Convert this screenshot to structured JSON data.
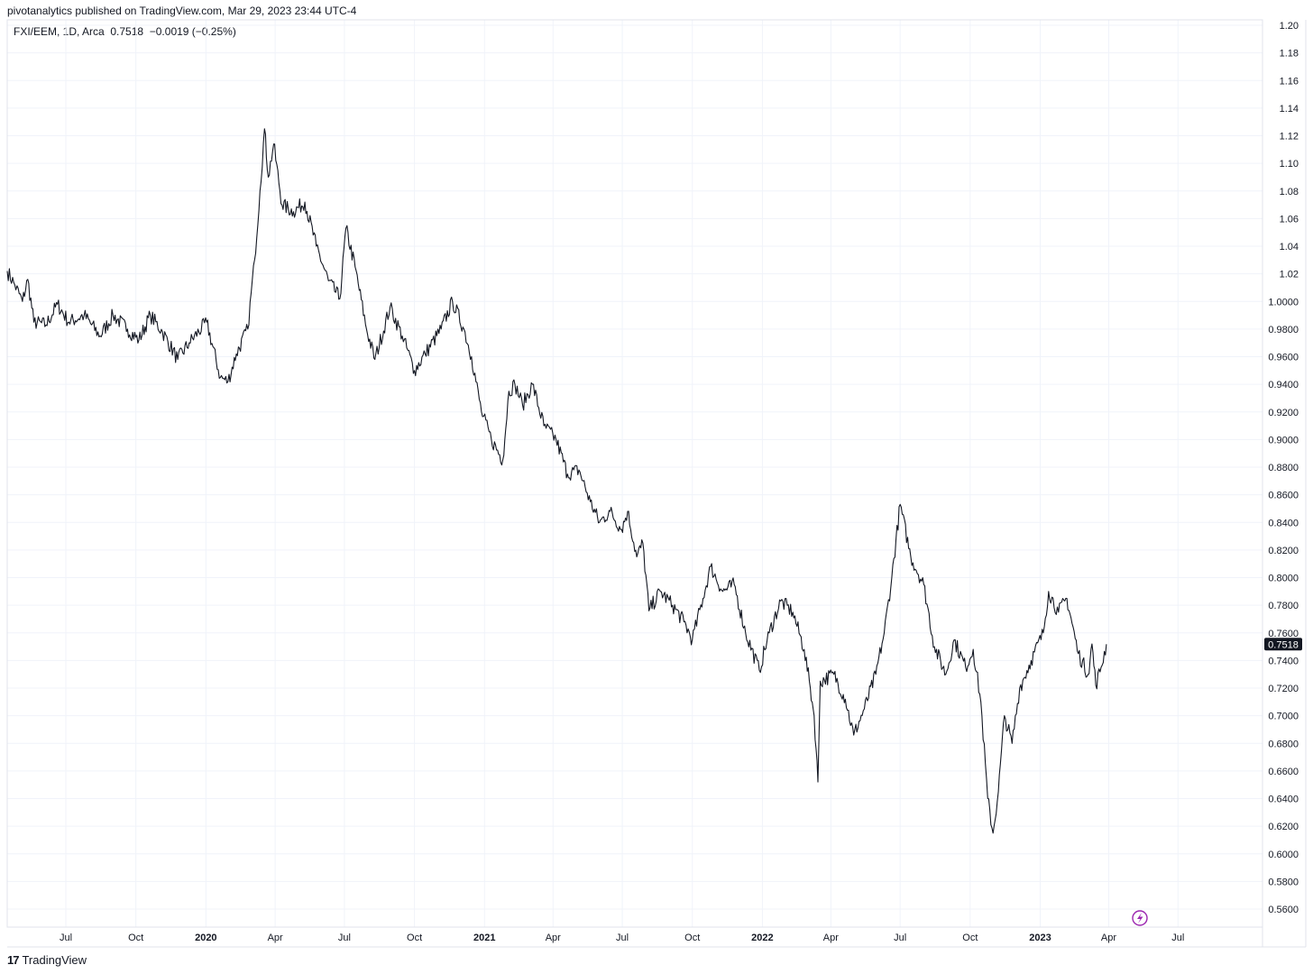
{
  "header": {
    "published": "pivotanalytics published on TradingView.com, Mar 29, 2023 23:44 UTC-4"
  },
  "legend": {
    "symbol": "FXI/EEM, 1D, Arca",
    "last": "0.7518",
    "change": "−0.0019 (−0.25%)"
  },
  "footer": {
    "brand": "TradingView",
    "logo_icon": "tradingview-logo-icon",
    "bolt_icon": "lightning-icon"
  },
  "colors": {
    "line": "#131722",
    "grid": "#f0f3fa",
    "price_tag": "#131722",
    "bolt": "#9c27b0"
  },
  "chart_data": {
    "type": "line",
    "series": [
      {
        "values": []
      }
    ],
    "ylim": [
      0.55,
      1.2
    ],
    "price_scale_ticks": [
      "1.20",
      "1.18",
      "1.16",
      "1.14",
      "1.12",
      "1.10",
      "1.08",
      "1.06",
      "1.04",
      "1.02",
      "1.0000",
      "0.9800",
      "0.9600",
      "0.9400",
      "0.9200",
      "0.9000",
      "0.8800",
      "0.8600",
      "0.8400",
      "0.8200",
      "0.8000",
      "0.7800",
      "0.7600",
      "0.7400",
      "0.7200",
      "0.7000",
      "0.6800",
      "0.6600",
      "0.6400",
      "0.6200",
      "0.6000",
      "0.5800",
      "0.5600"
    ],
    "price_scale_values": [
      1.2,
      1.18,
      1.16,
      1.14,
      1.12,
      1.1,
      1.08,
      1.06,
      1.04,
      1.02,
      1.0,
      0.98,
      0.96,
      0.94,
      0.92,
      0.9,
      0.88,
      0.86,
      0.84,
      0.82,
      0.8,
      0.78,
      0.76,
      0.74,
      0.72,
      0.7,
      0.68,
      0.66,
      0.64,
      0.62,
      0.6,
      0.58,
      0.56
    ],
    "time_ticks": [
      {
        "label": "Jul",
        "date": "2019-07-01",
        "bold": false
      },
      {
        "label": "Oct",
        "date": "2019-10-01",
        "bold": false
      },
      {
        "label": "2020",
        "date": "2020-01-01",
        "bold": true
      },
      {
        "label": "Apr",
        "date": "2020-04-01",
        "bold": false
      },
      {
        "label": "Jul",
        "date": "2020-07-01",
        "bold": false
      },
      {
        "label": "Oct",
        "date": "2020-10-01",
        "bold": false
      },
      {
        "label": "2021",
        "date": "2021-01-01",
        "bold": true
      },
      {
        "label": "Apr",
        "date": "2021-04-01",
        "bold": false
      },
      {
        "label": "Jul",
        "date": "2021-07-01",
        "bold": false
      },
      {
        "label": "Oct",
        "date": "2021-10-01",
        "bold": false
      },
      {
        "label": "2022",
        "date": "2022-01-01",
        "bold": true
      },
      {
        "label": "Apr",
        "date": "2022-04-01",
        "bold": false
      },
      {
        "label": "Jul",
        "date": "2022-07-01",
        "bold": false
      },
      {
        "label": "Oct",
        "date": "2022-10-01",
        "bold": false
      },
      {
        "label": "2023",
        "date": "2023-01-01",
        "bold": true
      },
      {
        "label": "Apr",
        "date": "2023-04-01",
        "bold": false
      },
      {
        "label": "Jul",
        "date": "2023-07-01",
        "bold": false
      }
    ],
    "x_range": [
      "2019-04-15",
      "2023-10-20"
    ],
    "key_points": [
      {
        "date": "2019-04-15",
        "value": 1.022
      },
      {
        "date": "2019-04-25",
        "value": 1.012
      },
      {
        "date": "2019-05-05",
        "value": 1.0
      },
      {
        "date": "2019-05-12",
        "value": 1.016
      },
      {
        "date": "2019-05-20",
        "value": 0.985
      },
      {
        "date": "2019-06-05",
        "value": 0.983
      },
      {
        "date": "2019-06-20",
        "value": 0.998
      },
      {
        "date": "2019-07-05",
        "value": 0.985
      },
      {
        "date": "2019-07-25",
        "value": 0.99
      },
      {
        "date": "2019-08-15",
        "value": 0.975
      },
      {
        "date": "2019-09-01",
        "value": 0.99
      },
      {
        "date": "2019-09-20",
        "value": 0.98
      },
      {
        "date": "2019-10-05",
        "value": 0.972
      },
      {
        "date": "2019-10-20",
        "value": 0.99
      },
      {
        "date": "2019-11-05",
        "value": 0.978
      },
      {
        "date": "2019-11-25",
        "value": 0.958
      },
      {
        "date": "2019-12-10",
        "value": 0.97
      },
      {
        "date": "2020-01-02",
        "value": 0.985
      },
      {
        "date": "2020-01-20",
        "value": 0.945
      },
      {
        "date": "2020-01-30",
        "value": 0.942
      },
      {
        "date": "2020-02-10",
        "value": 0.962
      },
      {
        "date": "2020-02-25",
        "value": 0.98
      },
      {
        "date": "2020-03-05",
        "value": 1.03
      },
      {
        "date": "2020-03-12",
        "value": 1.08
      },
      {
        "date": "2020-03-18",
        "value": 1.125
      },
      {
        "date": "2020-03-23",
        "value": 1.09
      },
      {
        "date": "2020-03-30",
        "value": 1.114
      },
      {
        "date": "2020-04-10",
        "value": 1.07
      },
      {
        "date": "2020-04-25",
        "value": 1.065
      },
      {
        "date": "2020-05-10",
        "value": 1.072
      },
      {
        "date": "2020-05-25",
        "value": 1.04
      },
      {
        "date": "2020-06-10",
        "value": 1.015
      },
      {
        "date": "2020-06-25",
        "value": 1.002
      },
      {
        "date": "2020-07-03",
        "value": 1.053
      },
      {
        "date": "2020-07-15",
        "value": 1.025
      },
      {
        "date": "2020-07-30",
        "value": 0.98
      },
      {
        "date": "2020-08-10",
        "value": 0.958
      },
      {
        "date": "2020-08-30",
        "value": 0.996
      },
      {
        "date": "2020-09-15",
        "value": 0.975
      },
      {
        "date": "2020-10-01",
        "value": 0.95
      },
      {
        "date": "2020-10-15",
        "value": 0.962
      },
      {
        "date": "2020-11-05",
        "value": 0.98
      },
      {
        "date": "2020-11-20",
        "value": 1.0
      },
      {
        "date": "2020-12-05",
        "value": 0.98
      },
      {
        "date": "2020-12-15",
        "value": 0.96
      },
      {
        "date": "2020-12-28",
        "value": 0.92
      },
      {
        "date": "2021-01-10",
        "value": 0.9
      },
      {
        "date": "2021-01-25",
        "value": 0.885
      },
      {
        "date": "2021-02-02",
        "value": 0.935
      },
      {
        "date": "2021-02-10",
        "value": 0.94
      },
      {
        "date": "2021-02-20",
        "value": 0.925
      },
      {
        "date": "2021-03-05",
        "value": 0.94
      },
      {
        "date": "2021-03-20",
        "value": 0.91
      },
      {
        "date": "2021-04-05",
        "value": 0.9
      },
      {
        "date": "2021-04-20",
        "value": 0.875
      },
      {
        "date": "2021-05-05",
        "value": 0.878
      },
      {
        "date": "2021-05-20",
        "value": 0.855
      },
      {
        "date": "2021-06-01",
        "value": 0.84
      },
      {
        "date": "2021-06-15",
        "value": 0.848
      },
      {
        "date": "2021-06-30",
        "value": 0.835
      },
      {
        "date": "2021-07-08",
        "value": 0.848
      },
      {
        "date": "2021-07-20",
        "value": 0.815
      },
      {
        "date": "2021-07-28",
        "value": 0.825
      },
      {
        "date": "2021-08-05",
        "value": 0.776
      },
      {
        "date": "2021-08-20",
        "value": 0.79
      },
      {
        "date": "2021-09-05",
        "value": 0.78
      },
      {
        "date": "2021-09-20",
        "value": 0.768
      },
      {
        "date": "2021-10-01",
        "value": 0.755
      },
      {
        "date": "2021-10-15",
        "value": 0.785
      },
      {
        "date": "2021-10-25",
        "value": 0.808
      },
      {
        "date": "2021-11-10",
        "value": 0.79
      },
      {
        "date": "2021-11-25",
        "value": 0.795
      },
      {
        "date": "2021-12-10",
        "value": 0.76
      },
      {
        "date": "2021-12-28",
        "value": 0.733
      },
      {
        "date": "2022-01-10",
        "value": 0.76
      },
      {
        "date": "2022-01-25",
        "value": 0.783
      },
      {
        "date": "2022-02-10",
        "value": 0.775
      },
      {
        "date": "2022-02-25",
        "value": 0.748
      },
      {
        "date": "2022-03-05",
        "value": 0.72
      },
      {
        "date": "2022-03-10",
        "value": 0.7
      },
      {
        "date": "2022-03-15",
        "value": 0.652
      },
      {
        "date": "2022-03-18",
        "value": 0.725
      },
      {
        "date": "2022-04-05",
        "value": 0.73
      },
      {
        "date": "2022-04-20",
        "value": 0.712
      },
      {
        "date": "2022-05-01",
        "value": 0.686
      },
      {
        "date": "2022-05-15",
        "value": 0.705
      },
      {
        "date": "2022-05-30",
        "value": 0.73
      },
      {
        "date": "2022-06-10",
        "value": 0.76
      },
      {
        "date": "2022-06-20",
        "value": 0.8
      },
      {
        "date": "2022-07-01",
        "value": 0.853
      },
      {
        "date": "2022-07-15",
        "value": 0.815
      },
      {
        "date": "2022-08-01",
        "value": 0.795
      },
      {
        "date": "2022-08-15",
        "value": 0.75
      },
      {
        "date": "2022-08-30",
        "value": 0.73
      },
      {
        "date": "2022-09-10",
        "value": 0.755
      },
      {
        "date": "2022-09-25",
        "value": 0.735
      },
      {
        "date": "2022-10-05",
        "value": 0.748
      },
      {
        "date": "2022-10-15",
        "value": 0.71
      },
      {
        "date": "2022-10-24",
        "value": 0.64
      },
      {
        "date": "2022-10-31",
        "value": 0.615
      },
      {
        "date": "2022-11-07",
        "value": 0.645
      },
      {
        "date": "2022-11-15",
        "value": 0.7
      },
      {
        "date": "2022-11-25",
        "value": 0.68
      },
      {
        "date": "2022-12-05",
        "value": 0.72
      },
      {
        "date": "2022-12-20",
        "value": 0.74
      },
      {
        "date": "2023-01-05",
        "value": 0.76
      },
      {
        "date": "2023-01-12",
        "value": 0.79
      },
      {
        "date": "2023-01-25",
        "value": 0.775
      },
      {
        "date": "2023-02-05",
        "value": 0.785
      },
      {
        "date": "2023-02-20",
        "value": 0.745
      },
      {
        "date": "2023-03-05",
        "value": 0.73
      },
      {
        "date": "2023-03-10",
        "value": 0.752
      },
      {
        "date": "2023-03-15",
        "value": 0.722
      },
      {
        "date": "2023-03-22",
        "value": 0.735
      },
      {
        "date": "2023-03-29",
        "value": 0.7518
      }
    ]
  }
}
